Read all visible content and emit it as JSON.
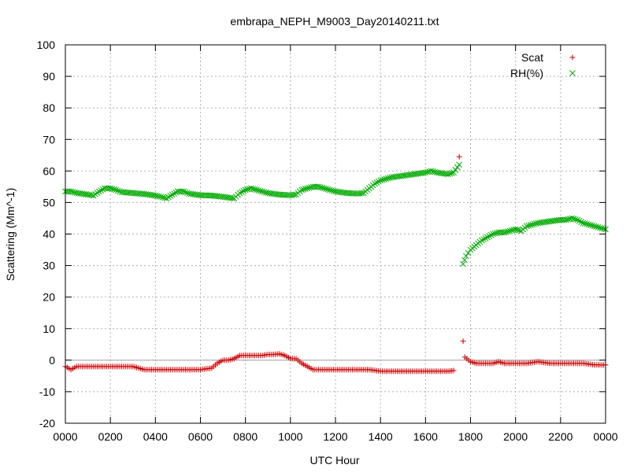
{
  "chart_data": {
    "type": "scatter",
    "title": "embrapa_NEPH_M9003_Day20140211.txt",
    "xlabel": "UTC Hour",
    "ylabel": "Scattering (Mm^-1)",
    "x_range_hours": [
      0,
      24
    ],
    "ylim": [
      -20,
      100
    ],
    "y_ticks": [
      -20,
      -10,
      0,
      10,
      20,
      30,
      40,
      50,
      60,
      70,
      80,
      90,
      100
    ],
    "x_tick_labels": [
      "0000",
      "0200",
      "0400",
      "0600",
      "0800",
      "1000",
      "1200",
      "1400",
      "1600",
      "1800",
      "2000",
      "2200",
      "0000"
    ],
    "grid": true,
    "zero_line": true,
    "legend_position": "top-right",
    "series": [
      {
        "name": "Scat",
        "marker": "+",
        "color": "#cc0000",
        "points": [
          [
            0.0,
            -2.0
          ],
          [
            0.25,
            -3.0
          ],
          [
            0.5,
            -2.0
          ],
          [
            1.0,
            -2.0
          ],
          [
            1.5,
            -2.0
          ],
          [
            2.0,
            -2.0
          ],
          [
            2.5,
            -2.0
          ],
          [
            3.0,
            -2.0
          ],
          [
            3.5,
            -3.0
          ],
          [
            4.0,
            -3.0
          ],
          [
            4.5,
            -3.0
          ],
          [
            5.0,
            -3.0
          ],
          [
            5.5,
            -3.0
          ],
          [
            6.0,
            -3.0
          ],
          [
            6.5,
            -2.5
          ],
          [
            6.75,
            -1.0
          ],
          [
            7.0,
            0.0
          ],
          [
            7.25,
            0.0
          ],
          [
            7.5,
            0.5
          ],
          [
            7.75,
            1.5
          ],
          [
            8.0,
            1.5
          ],
          [
            8.25,
            1.5
          ],
          [
            8.5,
            1.5
          ],
          [
            8.75,
            1.5
          ],
          [
            9.0,
            1.8
          ],
          [
            9.25,
            1.8
          ],
          [
            9.5,
            2.0
          ],
          [
            9.75,
            1.5
          ],
          [
            10.0,
            0.5
          ],
          [
            10.25,
            0.5
          ],
          [
            10.5,
            -1.0
          ],
          [
            10.75,
            -2.0
          ],
          [
            11.0,
            -3.0
          ],
          [
            11.5,
            -3.0
          ],
          [
            12.0,
            -3.0
          ],
          [
            12.5,
            -3.0
          ],
          [
            13.0,
            -3.0
          ],
          [
            13.5,
            -3.0
          ],
          [
            14.0,
            -3.5
          ],
          [
            14.5,
            -3.5
          ],
          [
            15.0,
            -3.5
          ],
          [
            15.5,
            -3.5
          ],
          [
            16.0,
            -3.5
          ],
          [
            16.5,
            -3.5
          ],
          [
            17.0,
            -3.5
          ],
          [
            17.25,
            -3.3
          ],
          [
            17.5,
            64.5
          ],
          [
            17.67,
            6.0
          ],
          [
            17.75,
            1.0
          ],
          [
            18.0,
            -0.5
          ],
          [
            18.25,
            -1.0
          ],
          [
            18.5,
            -1.0
          ],
          [
            18.75,
            -1.0
          ],
          [
            19.0,
            -1.0
          ],
          [
            19.25,
            -0.5
          ],
          [
            19.5,
            -1.0
          ],
          [
            20.0,
            -1.0
          ],
          [
            20.5,
            -1.0
          ],
          [
            21.0,
            -0.5
          ],
          [
            21.5,
            -1.0
          ],
          [
            22.0,
            -1.0
          ],
          [
            22.5,
            -1.0
          ],
          [
            23.0,
            -1.0
          ],
          [
            23.5,
            -1.5
          ],
          [
            24.0,
            -1.5
          ]
        ]
      },
      {
        "name": "RH(%)",
        "marker": "x",
        "color": "#00aa00",
        "points": [
          [
            0.0,
            53.5
          ],
          [
            0.25,
            53.5
          ],
          [
            0.5,
            53.0
          ],
          [
            0.75,
            52.8
          ],
          [
            1.0,
            52.5
          ],
          [
            1.25,
            52.2
          ],
          [
            1.5,
            53.5
          ],
          [
            1.75,
            54.5
          ],
          [
            2.0,
            54.5
          ],
          [
            2.25,
            54.0
          ],
          [
            2.5,
            53.3
          ],
          [
            3.0,
            53.0
          ],
          [
            3.5,
            52.7
          ],
          [
            4.0,
            52.2
          ],
          [
            4.25,
            51.8
          ],
          [
            4.5,
            51.3
          ],
          [
            4.75,
            52.5
          ],
          [
            5.0,
            53.5
          ],
          [
            5.25,
            53.5
          ],
          [
            5.5,
            52.8
          ],
          [
            6.0,
            52.3
          ],
          [
            6.5,
            52.2
          ],
          [
            7.0,
            51.8
          ],
          [
            7.5,
            51.3
          ],
          [
            7.75,
            53.0
          ],
          [
            8.0,
            54.0
          ],
          [
            8.25,
            54.5
          ],
          [
            8.5,
            54.0
          ],
          [
            8.75,
            53.5
          ],
          [
            9.0,
            53.0
          ],
          [
            9.5,
            52.5
          ],
          [
            10.0,
            52.3
          ],
          [
            10.25,
            52.5
          ],
          [
            10.5,
            54.0
          ],
          [
            10.75,
            54.5
          ],
          [
            11.0,
            55.0
          ],
          [
            11.25,
            55.0
          ],
          [
            11.5,
            54.5
          ],
          [
            12.0,
            53.5
          ],
          [
            12.5,
            53.0
          ],
          [
            13.0,
            52.8
          ],
          [
            13.25,
            53.0
          ],
          [
            13.5,
            54.5
          ],
          [
            13.75,
            56.0
          ],
          [
            14.0,
            57.0
          ],
          [
            14.25,
            57.5
          ],
          [
            14.5,
            58.0
          ],
          [
            15.0,
            58.5
          ],
          [
            15.5,
            59.0
          ],
          [
            16.0,
            59.5
          ],
          [
            16.25,
            60.0
          ],
          [
            16.5,
            59.5
          ],
          [
            17.0,
            59.0
          ],
          [
            17.25,
            59.5
          ],
          [
            17.5,
            62.0
          ],
          [
            17.67,
            30.5
          ],
          [
            17.8,
            33.0
          ],
          [
            18.0,
            35.0
          ],
          [
            18.25,
            36.5
          ],
          [
            18.5,
            38.0
          ],
          [
            18.75,
            39.0
          ],
          [
            19.0,
            40.0
          ],
          [
            19.25,
            40.5
          ],
          [
            19.5,
            40.5
          ],
          [
            19.75,
            41.0
          ],
          [
            20.0,
            41.5
          ],
          [
            20.25,
            41.0
          ],
          [
            20.5,
            42.5
          ],
          [
            20.75,
            43.0
          ],
          [
            21.0,
            43.5
          ],
          [
            21.5,
            44.0
          ],
          [
            22.0,
            44.5
          ],
          [
            22.25,
            44.5
          ],
          [
            22.5,
            45.0
          ],
          [
            22.75,
            44.5
          ],
          [
            23.0,
            43.5
          ],
          [
            23.25,
            43.0
          ],
          [
            23.5,
            42.5
          ],
          [
            23.75,
            42.0
          ],
          [
            24.0,
            41.5
          ]
        ]
      }
    ]
  }
}
